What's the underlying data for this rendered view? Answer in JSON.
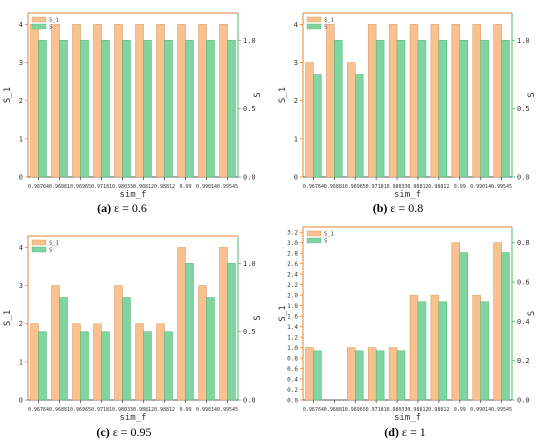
{
  "colors": {
    "s1": "#f9c18f",
    "s": "#7fd4a0",
    "s1_axis": "#e8823a",
    "s_axis": "#4fb577"
  },
  "chart_data": [
    {
      "type": "bar",
      "caption_letter": "(a)",
      "caption_text": "ε = 0.6",
      "xlabel": "sim_f",
      "ylabel_left": "S_1",
      "ylabel_right": "S",
      "categories": [
        "0.96764",
        "0.96881",
        "0.96965",
        "0.97181",
        "0.98033",
        "0.98812",
        "0.98812",
        "0.99",
        "0.99014",
        "0.99545"
      ],
      "series": [
        {
          "name": "S_1",
          "axis": "left",
          "values": [
            4,
            4,
            4,
            4,
            4,
            4,
            4,
            4,
            4,
            4
          ]
        },
        {
          "name": "S",
          "axis": "right",
          "values": [
            1,
            1,
            1,
            1,
            1,
            1,
            1,
            1,
            1,
            1
          ]
        }
      ],
      "ylim_left": [
        0,
        4.3
      ],
      "yticks_left": [
        0,
        1,
        2,
        3,
        4
      ],
      "ylim_right": [
        0,
        1.2
      ],
      "yticks_right": [
        0.0,
        0.5,
        1.0
      ],
      "legend": "top-left",
      "grid": false
    },
    {
      "type": "bar",
      "caption_letter": "(b)",
      "caption_text": "ε = 0.8",
      "xlabel": "sim_f",
      "ylabel_left": "S_1",
      "ylabel_right": "S",
      "categories": [
        "0.96764",
        "0.96881",
        "0.96965",
        "0.97181",
        "0.98033",
        "0.98812",
        "0.98812",
        "0.99",
        "0.99014",
        "0.99545"
      ],
      "series": [
        {
          "name": "S_1",
          "axis": "left",
          "values": [
            3,
            4,
            3,
            4,
            4,
            4,
            4,
            4,
            4,
            4
          ]
        },
        {
          "name": "S",
          "axis": "right",
          "values": [
            0.75,
            1,
            0.75,
            1,
            1,
            1,
            1,
            1,
            1,
            1
          ]
        }
      ],
      "ylim_left": [
        0,
        4.3
      ],
      "yticks_left": [
        0,
        1,
        2,
        3,
        4
      ],
      "ylim_right": [
        0,
        1.2
      ],
      "yticks_right": [
        0.0,
        0.5,
        1.0
      ],
      "legend": "top-left",
      "grid": false
    },
    {
      "type": "bar",
      "caption_letter": "(c)",
      "caption_text": "ε = 0.95",
      "xlabel": "sim_f",
      "ylabel_left": "S_1",
      "ylabel_right": "S",
      "categories": [
        "0.96764",
        "0.96881",
        "0.96965",
        "0.97181",
        "0.98033",
        "0.98812",
        "0.98812",
        "0.99",
        "0.99014",
        "0.99545"
      ],
      "series": [
        {
          "name": "S_1",
          "axis": "left",
          "values": [
            2,
            3,
            2,
            2,
            3,
            2,
            2,
            4,
            3,
            4
          ]
        },
        {
          "name": "S",
          "axis": "right",
          "values": [
            0.5,
            0.75,
            0.5,
            0.5,
            0.75,
            0.5,
            0.5,
            1,
            0.75,
            1
          ]
        }
      ],
      "ylim_left": [
        0,
        4.3
      ],
      "yticks_left": [
        0,
        1,
        2,
        3,
        4
      ],
      "ylim_right": [
        0,
        1.2
      ],
      "yticks_right": [
        0.0,
        0.5,
        1.0
      ],
      "legend": "top-left",
      "grid": false
    },
    {
      "type": "bar",
      "caption_letter": "(d)",
      "caption_text": "ε = 1",
      "xlabel": "sim_f",
      "ylabel_left": "S_1",
      "ylabel_right": "S",
      "categories": [
        "0.96764",
        "0.96881",
        "0.96965",
        "0.97181",
        "0.98033",
        "0.98812",
        "0.98812",
        "0.99",
        "0.99014",
        "0.99545"
      ],
      "series": [
        {
          "name": "S_1",
          "axis": "left",
          "values": [
            1,
            0,
            1,
            1,
            1,
            2,
            2,
            3,
            2,
            3
          ]
        },
        {
          "name": "S",
          "axis": "right",
          "values": [
            0.25,
            0,
            0.25,
            0.25,
            0.25,
            0.5,
            0.5,
            0.75,
            0.5,
            0.75
          ]
        }
      ],
      "ylim_left": [
        0,
        3.3
      ],
      "yticks_left": [
        0,
        0.2,
        0.4,
        0.6,
        0.8,
        1.0,
        1.2,
        1.4,
        1.6,
        1.8,
        2.0,
        2.2,
        2.4,
        2.6,
        2.8,
        3.0,
        3.2
      ],
      "ylim_right": [
        0,
        0.88
      ],
      "yticks_right": [
        0.0,
        0.2,
        0.4,
        0.6,
        0.8
      ],
      "legend": "top-left",
      "grid": false
    }
  ]
}
